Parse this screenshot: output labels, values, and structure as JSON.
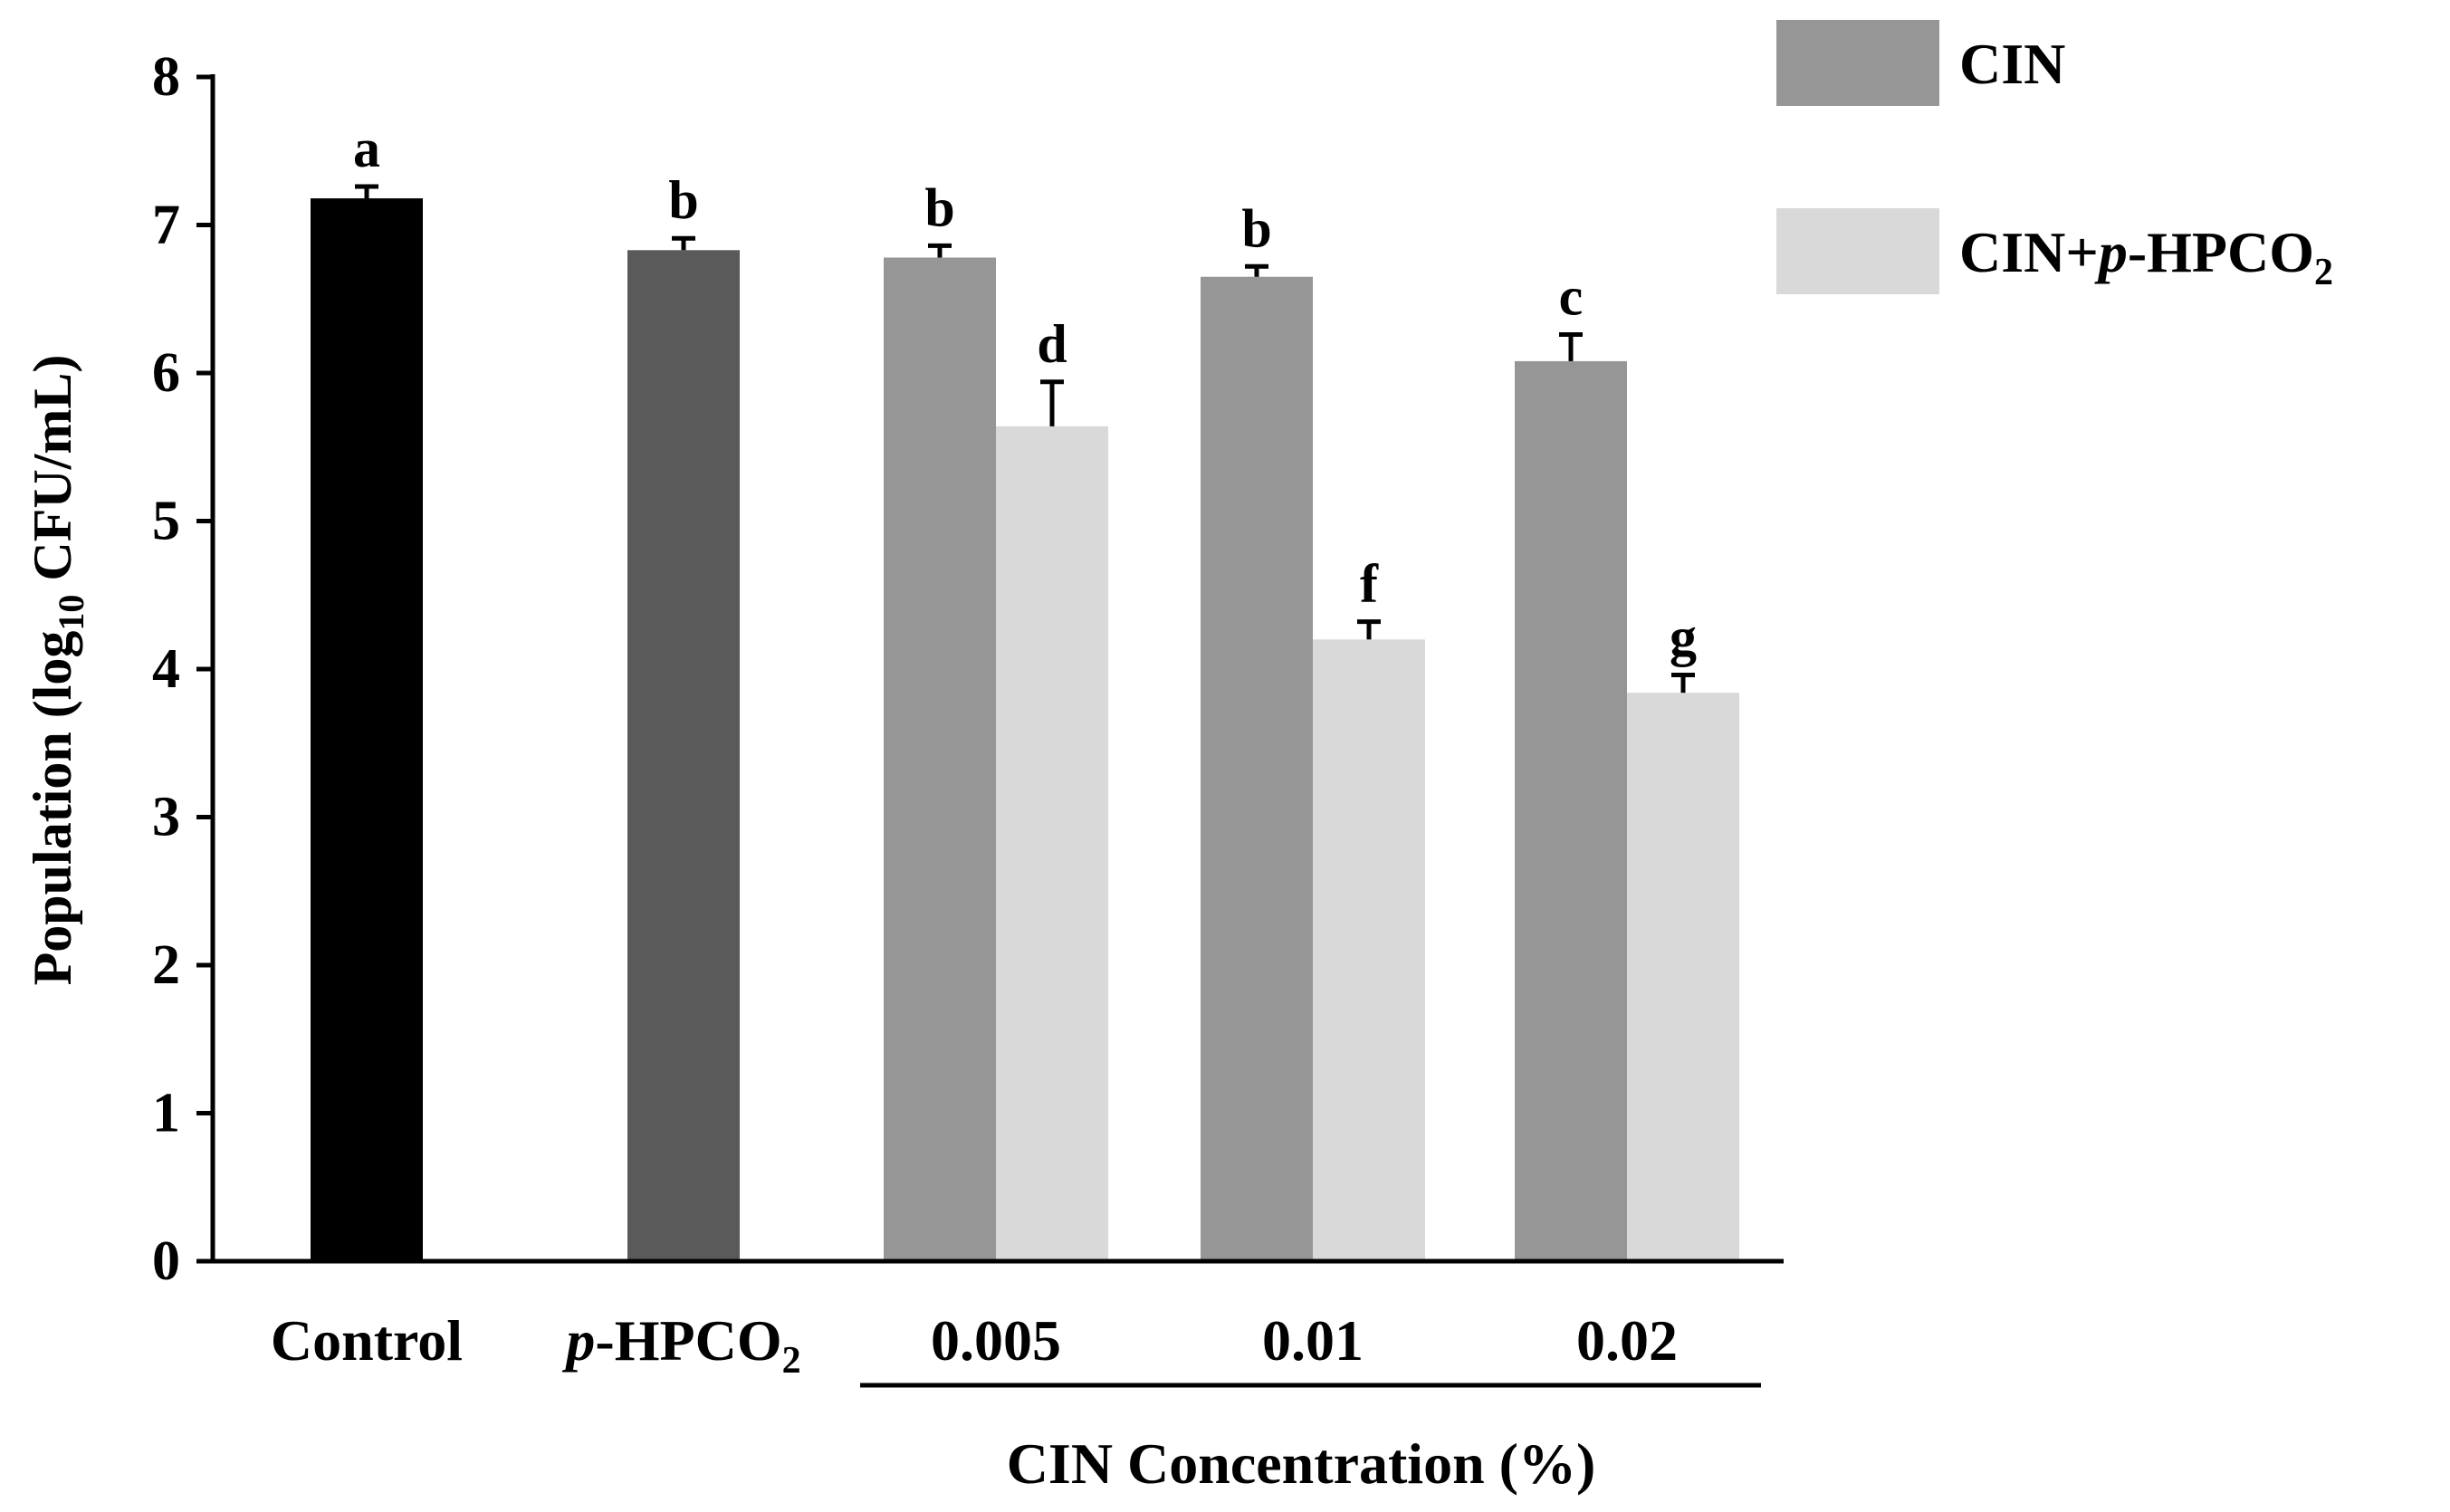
{
  "chart_data": {
    "type": "bar",
    "title": "",
    "ylabel": "Population (log",
    "ylabel_sub": "10",
    "ylabel_tail": " CFU/mL)",
    "xlabel": "CIN Concentration (%)",
    "ylim": [
      0,
      8
    ],
    "yticks": [
      "0",
      "1",
      "2",
      "3",
      "4",
      "5",
      "6",
      "7",
      "8"
    ],
    "groups": [
      {
        "label": "Control"
      },
      {
        "label_prefix": "p",
        "label": "-HPCO",
        "label_sub": "2"
      },
      {
        "label": "0.005"
      },
      {
        "label": "0.01"
      },
      {
        "label": "0.02"
      }
    ],
    "bars": [
      {
        "group": 0,
        "slot": "center",
        "series": "control",
        "value": 7.18,
        "error": 0.08,
        "letter": "a"
      },
      {
        "group": 1,
        "slot": "center",
        "series": "phpco2",
        "value": 6.83,
        "error": 0.08,
        "letter": "b"
      },
      {
        "group": 2,
        "slot": "left",
        "series": "cin",
        "value": 6.78,
        "error": 0.08,
        "letter": "b"
      },
      {
        "group": 2,
        "slot": "right",
        "series": "combo",
        "value": 5.64,
        "error": 0.3,
        "letter": "d"
      },
      {
        "group": 3,
        "slot": "left",
        "series": "cin",
        "value": 6.65,
        "error": 0.07,
        "letter": "b"
      },
      {
        "group": 3,
        "slot": "right",
        "series": "combo",
        "value": 4.2,
        "error": 0.12,
        "letter": "f"
      },
      {
        "group": 4,
        "slot": "left",
        "series": "cin",
        "value": 6.08,
        "error": 0.18,
        "letter": "c"
      },
      {
        "group": 4,
        "slot": "right",
        "series": "combo",
        "value": 3.84,
        "error": 0.12,
        "letter": "g"
      }
    ],
    "series_colors": {
      "control": "#000000",
      "phpco2": "#5a5a5a",
      "cin": "#969696",
      "combo": "#d9d9d9"
    },
    "legend": [
      {
        "series": "cin",
        "label": "CIN"
      },
      {
        "series": "combo",
        "label": "CIN+",
        "label_italic": "p",
        "label_rest": "-HPCO",
        "label_sub": "2"
      }
    ],
    "legend_position": "top-right"
  }
}
